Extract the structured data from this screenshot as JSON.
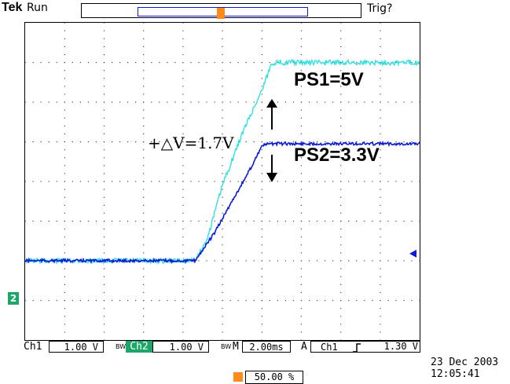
{
  "header": {
    "brand": "Tek",
    "run_state": "Run",
    "trigger_state": "Trig?",
    "trigger_marker": "T"
  },
  "annotations": {
    "ps1": "PS1=5V",
    "ps2": "PS2=3.3V",
    "delta": "+△V=1.7V"
  },
  "channels": {
    "ch1": {
      "label": "Ch1",
      "scale": "1.00 V",
      "color": "#33e0e0"
    },
    "ch2": {
      "label": "Ch2",
      "scale": "1.00 V",
      "color": "#0a1ad6",
      "marker": "2"
    }
  },
  "timebase": {
    "label": "M",
    "value": "2.00ms"
  },
  "trigger": {
    "prefix": "A",
    "source": "Ch1",
    "slope_icon": "rising-edge",
    "level": "1.30 V",
    "position": "50.00 %"
  },
  "timestamp": {
    "date": "23 Dec 2003",
    "time": "12:05:41"
  },
  "chart_data": {
    "type": "line",
    "x_unit": "div",
    "xlim": [
      0,
      10
    ],
    "ylim": [
      -4,
      4
    ],
    "grid": true,
    "series": [
      {
        "name": "Ch1",
        "x": [
          0,
          4.3,
          4.6,
          5.0,
          5.5,
          6.0,
          6.25,
          6.35,
          10
        ],
        "y": [
          -2.0,
          -2.0,
          -1.5,
          -0.1,
          1.2,
          2.3,
          2.98,
          3.0,
          3.0
        ]
      },
      {
        "name": "Ch2",
        "x": [
          0,
          4.3,
          4.45,
          4.8,
          5.3,
          5.7,
          6.0,
          6.2,
          10
        ],
        "y": [
          -2.0,
          -2.0,
          -1.8,
          -1.3,
          -0.4,
          0.3,
          0.9,
          0.95,
          0.95
        ]
      }
    ]
  }
}
